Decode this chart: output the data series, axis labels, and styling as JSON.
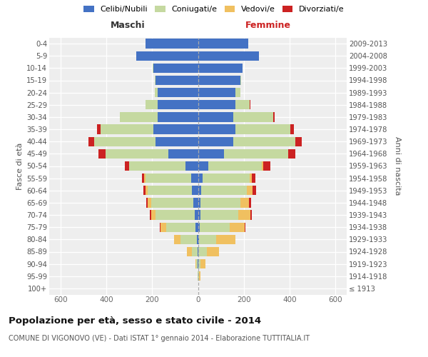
{
  "age_groups": [
    "100+",
    "95-99",
    "90-94",
    "85-89",
    "80-84",
    "75-79",
    "70-74",
    "65-69",
    "60-64",
    "55-59",
    "50-54",
    "45-49",
    "40-44",
    "35-39",
    "30-34",
    "25-29",
    "20-24",
    "15-19",
    "10-14",
    "5-9",
    "0-4"
  ],
  "birth_years": [
    "≤ 1913",
    "1914-1918",
    "1919-1923",
    "1924-1928",
    "1929-1933",
    "1934-1938",
    "1939-1943",
    "1944-1948",
    "1949-1953",
    "1954-1958",
    "1959-1963",
    "1964-1968",
    "1969-1973",
    "1974-1978",
    "1979-1983",
    "1984-1988",
    "1989-1993",
    "1994-1998",
    "1999-2003",
    "2004-2008",
    "2009-2013"
  ],
  "males_celibe": [
    0,
    0,
    2,
    3,
    5,
    10,
    15,
    20,
    25,
    30,
    55,
    130,
    185,
    195,
    175,
    175,
    175,
    185,
    195,
    270,
    230
  ],
  "males_coniugato": [
    0,
    2,
    5,
    25,
    70,
    130,
    170,
    185,
    195,
    200,
    245,
    275,
    270,
    230,
    165,
    55,
    15,
    5,
    2,
    0,
    0
  ],
  "males_vedovo": [
    0,
    0,
    5,
    20,
    30,
    25,
    20,
    15,
    10,
    5,
    0,
    0,
    0,
    0,
    0,
    0,
    0,
    0,
    0,
    0,
    0
  ],
  "males_divorziato": [
    0,
    0,
    0,
    0,
    0,
    3,
    5,
    5,
    10,
    10,
    20,
    30,
    25,
    15,
    0,
    0,
    0,
    0,
    0,
    0,
    0
  ],
  "females_nubile": [
    0,
    0,
    2,
    3,
    5,
    8,
    10,
    12,
    15,
    20,
    45,
    115,
    155,
    165,
    155,
    165,
    165,
    185,
    195,
    265,
    220
  ],
  "females_coniugata": [
    0,
    5,
    10,
    35,
    75,
    130,
    165,
    175,
    200,
    205,
    235,
    280,
    270,
    240,
    175,
    60,
    20,
    5,
    0,
    0,
    0
  ],
  "females_vedova": [
    2,
    5,
    20,
    55,
    85,
    65,
    55,
    35,
    25,
    10,
    5,
    0,
    0,
    0,
    0,
    0,
    0,
    0,
    0,
    0,
    0
  ],
  "females_divorziata": [
    0,
    0,
    0,
    0,
    0,
    3,
    5,
    10,
    15,
    15,
    30,
    30,
    30,
    15,
    5,
    5,
    0,
    0,
    0,
    0,
    0
  ],
  "color_celibe": "#4472C4",
  "color_coniugato": "#C5D9A0",
  "color_vedovo": "#F0C060",
  "color_divorziato": "#CC2222",
  "xlim": 650,
  "xticks": [
    -600,
    -400,
    -200,
    0,
    200,
    400,
    600
  ],
  "xticklabels": [
    "600",
    "400",
    "200",
    "0",
    "200",
    "400",
    "600"
  ],
  "title": "Popolazione per età, sesso e stato civile - 2014",
  "subtitle": "COMUNE DI VIGONOVO (VE) - Dati ISTAT 1° gennaio 2014 - Elaborazione TUTTITALIA.IT",
  "legend_labels": [
    "Celibi/Nubili",
    "Coniugati/e",
    "Vedovi/e",
    "Divorziati/e"
  ],
  "label_maschi": "Maschi",
  "label_femmine": "Femmine",
  "ylabel_left": "Fasce di età",
  "ylabel_right": "Anni di nascita",
  "bg_color": "#ffffff",
  "plot_bg": "#eeeeee",
  "bar_height": 0.78
}
